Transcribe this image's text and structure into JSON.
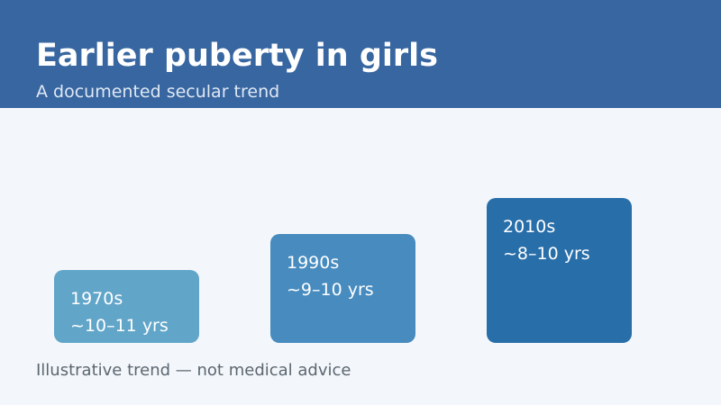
{
  "header": {
    "title": "Earlier puberty in girls",
    "subtitle": "A documented secular trend",
    "background_color": "#3766a0"
  },
  "cards": [
    {
      "era": "1970s",
      "age_range": "~10–11 yrs",
      "color": "#61a5c9"
    },
    {
      "era": "1990s",
      "age_range": "~9–10 yrs",
      "color": "#478bbf"
    },
    {
      "era": "2010s",
      "age_range": "~8–10 yrs",
      "color": "#286ea9"
    }
  ],
  "footnote": "Illustrative trend — not medical advice"
}
